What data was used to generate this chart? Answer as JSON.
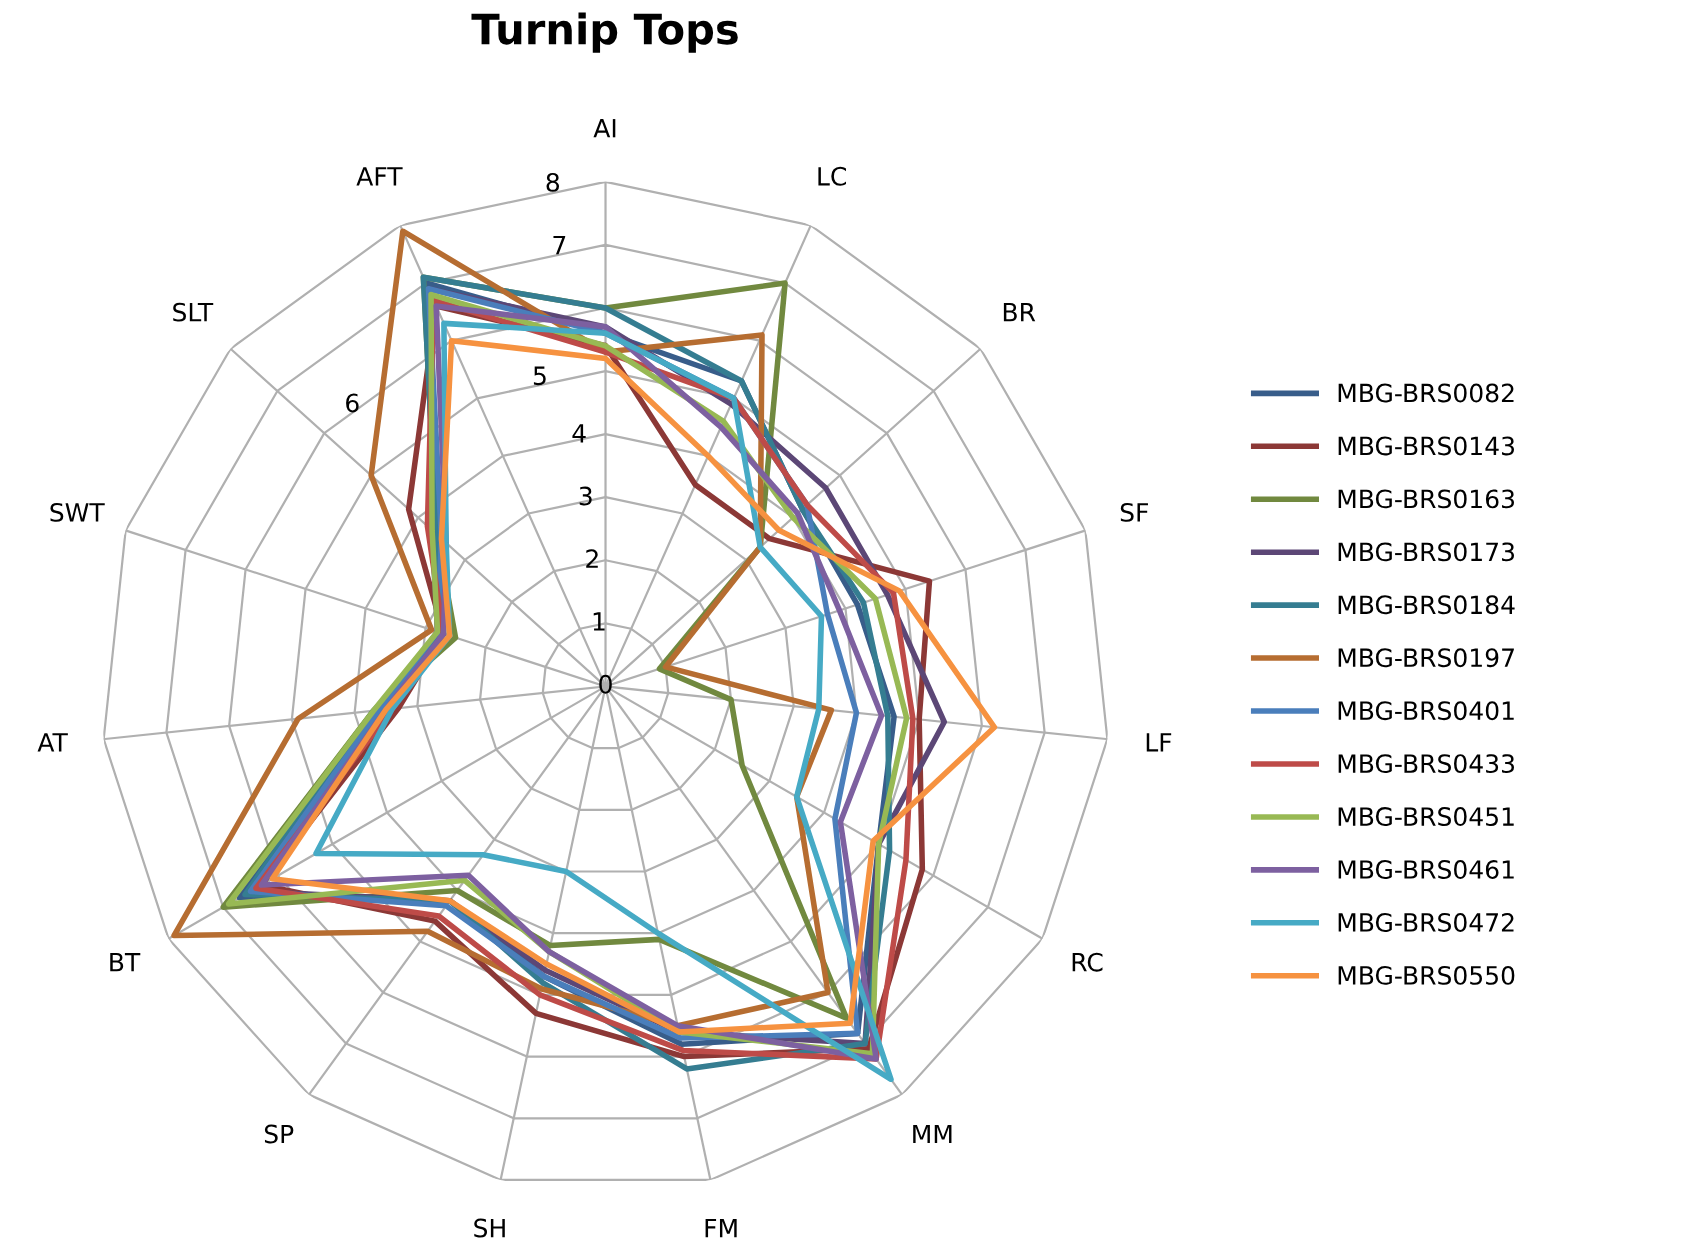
{
  "chart_data": {
    "type": "radar",
    "title": "Turnip Tops",
    "categories": [
      "AI",
      "LC",
      "BR",
      "SF",
      "LF",
      "RC",
      "MM",
      "FM",
      "SH",
      "SP",
      "BT",
      "AT",
      "SWT",
      "SLT",
      "AFT"
    ],
    "ylim": [
      0,
      8
    ],
    "yticks": [
      0,
      1,
      2,
      3,
      4,
      5,
      6,
      7,
      8
    ],
    "grid": true,
    "legend": "right",
    "marker": "none",
    "line_style": "solid",
    "series": [
      {
        "name": "MBG-BRS0082",
        "color": "#385d8a",
        "values": [
          5.6,
          5.3,
          4.2,
          4.2,
          4.6,
          5.0,
          6.8,
          5.8,
          4.7,
          4.2,
          6.7,
          3.6,
          2.8,
          3.6,
          7.0
        ]
      },
      {
        "name": "MBG-BRS0143",
        "color": "#8c3836",
        "values": [
          5.4,
          3.5,
          3.5,
          5.4,
          5.0,
          5.8,
          7.1,
          6.0,
          5.3,
          4.6,
          6.3,
          3.3,
          2.7,
          4.2,
          6.6
        ]
      },
      {
        "name": "MBG-BRS0163",
        "color": "#71893f",
        "values": [
          6.0,
          7.0,
          3.3,
          0.9,
          2.0,
          2.5,
          6.5,
          4.1,
          4.2,
          4.0,
          7.0,
          3.7,
          2.5,
          3.6,
          7.1
        ]
      },
      {
        "name": "MBG-BRS0173",
        "color": "#5c4776",
        "values": [
          5.7,
          4.9,
          4.7,
          4.7,
          5.4,
          5.0,
          7.0,
          5.6,
          4.6,
          4.2,
          6.5,
          3.5,
          2.8,
          3.7,
          6.9
        ]
      },
      {
        "name": "MBG-BRS0184",
        "color": "#357d91",
        "values": [
          6.0,
          5.3,
          4.2,
          4.3,
          4.5,
          5.2,
          7.0,
          6.2,
          4.8,
          4.2,
          6.6,
          3.7,
          2.7,
          3.6,
          7.1
        ]
      },
      {
        "name": "MBG-BRS0197",
        "color": "#b66d31",
        "values": [
          5.3,
          6.1,
          3.3,
          1.0,
          3.6,
          3.5,
          6.0,
          5.5,
          4.9,
          4.8,
          7.9,
          4.9,
          2.9,
          5.0,
          7.9
        ]
      },
      {
        "name": "MBG-BRS0401",
        "color": "#4a7ebb",
        "values": [
          5.6,
          5.0,
          4.3,
          3.7,
          4.0,
          4.2,
          6.8,
          5.7,
          4.7,
          4.3,
          6.5,
          3.6,
          2.8,
          3.5,
          6.9
        ]
      },
      {
        "name": "MBG-BRS0433",
        "color": "#be4b48",
        "values": [
          5.3,
          5.0,
          4.3,
          4.8,
          4.9,
          5.5,
          7.3,
          5.9,
          5.0,
          4.5,
          6.4,
          3.4,
          2.7,
          3.8,
          6.7
        ]
      },
      {
        "name": "MBG-BRS0451",
        "color": "#98b954",
        "values": [
          5.4,
          4.6,
          4.0,
          4.5,
          4.8,
          5.0,
          7.2,
          5.6,
          4.3,
          3.8,
          6.9,
          3.7,
          2.8,
          3.7,
          6.8
        ]
      },
      {
        "name": "MBG-BRS0461",
        "color": "#7d60a0",
        "values": [
          5.7,
          4.5,
          4.1,
          3.9,
          4.4,
          4.3,
          7.3,
          5.5,
          4.3,
          3.7,
          6.3,
          3.5,
          2.7,
          3.4,
          6.6
        ]
      },
      {
        "name": "MBG-BRS0472",
        "color": "#46aac5",
        "values": [
          5.6,
          5.0,
          3.3,
          3.6,
          3.4,
          3.5,
          7.7,
          4.0,
          3.0,
          3.3,
          5.3,
          3.4,
          2.6,
          3.4,
          6.3
        ]
      },
      {
        "name": "MBG-BRS0550",
        "color": "#f69240",
        "values": [
          5.2,
          4.0,
          3.7,
          4.9,
          6.2,
          4.9,
          6.6,
          5.6,
          4.5,
          4.2,
          6.1,
          3.5,
          2.6,
          3.5,
          6.0
        ]
      }
    ]
  }
}
